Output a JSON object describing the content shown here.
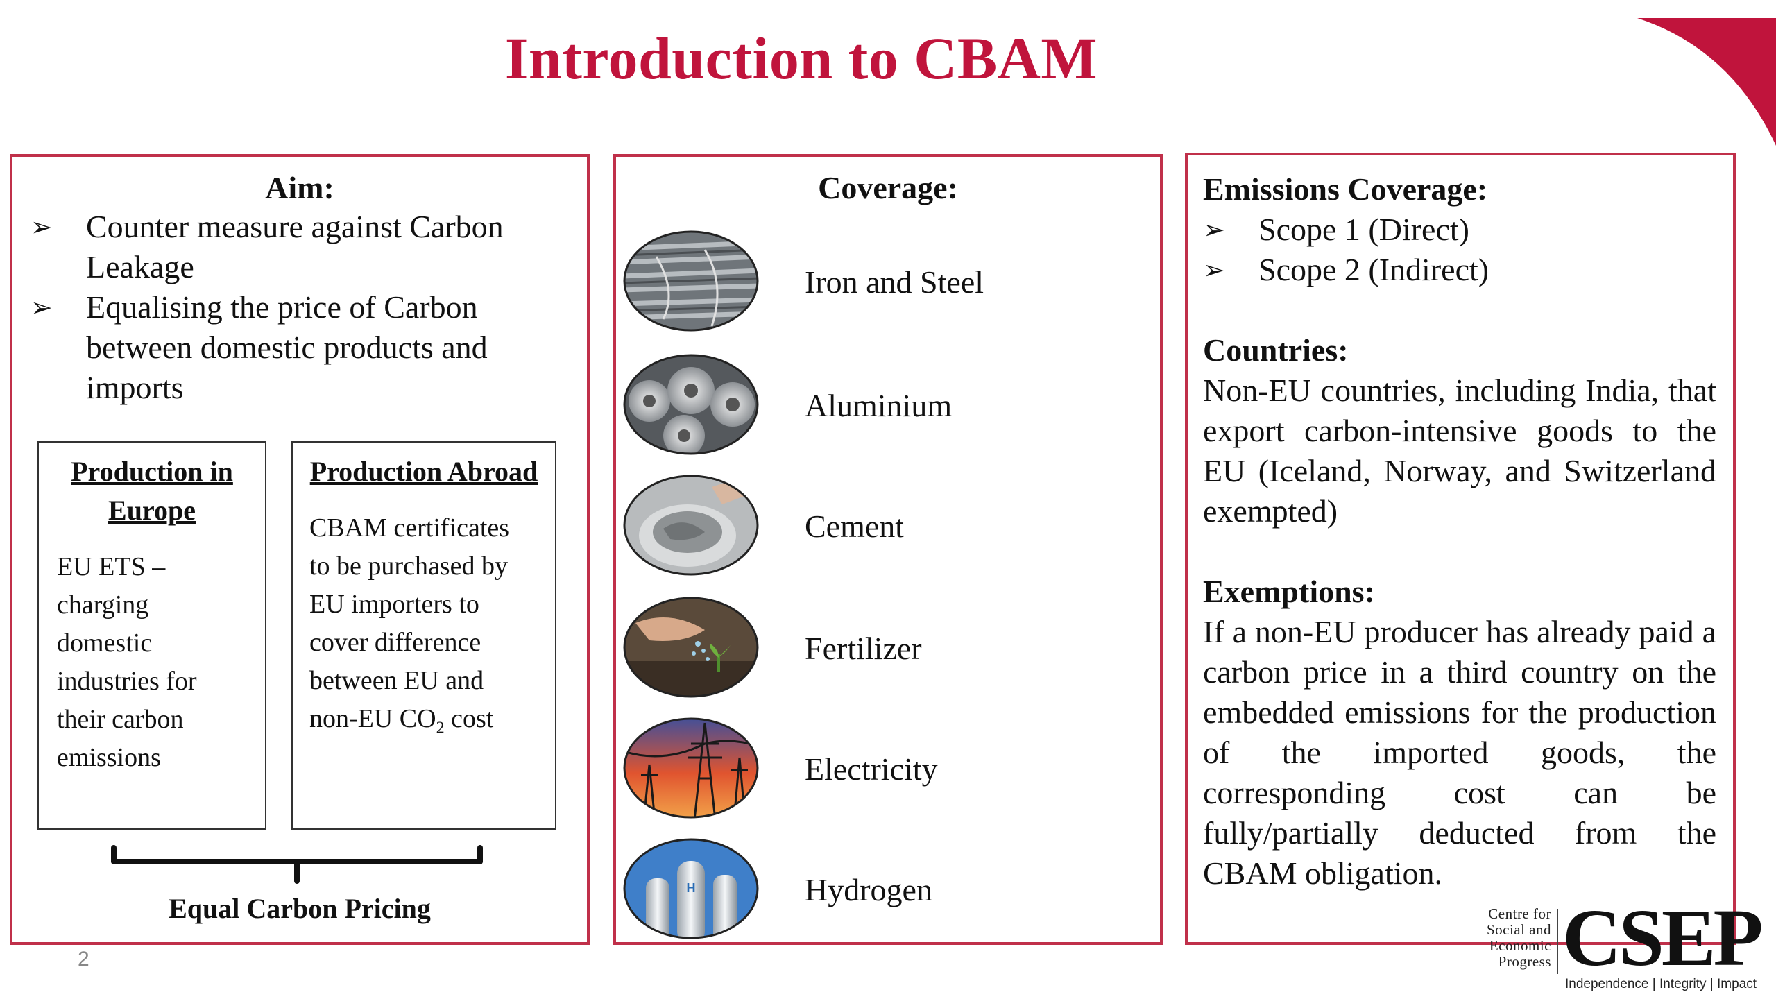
{
  "title": "Introduction to CBAM",
  "page_number": "2",
  "colors": {
    "accent": "#c0143c",
    "border": "#c0304a"
  },
  "aim": {
    "heading": "Aim:",
    "bullets": [
      "Counter measure against Carbon Leakage",
      "Equalising the price of Carbon between domestic products and imports"
    ],
    "europe": {
      "title": "Production in Europe",
      "text": "EU ETS – charging domestic industries for their carbon emissions"
    },
    "abroad": {
      "title": "Production Abroad",
      "text_before": "CBAM certificates to be purchased by EU importers to cover difference between EU and non-EU CO",
      "subscript": "2",
      "text_after": " cost"
    },
    "equal_label": "Equal Carbon Pricing"
  },
  "coverage": {
    "heading": "Coverage:",
    "items": [
      {
        "label": "Iron and Steel",
        "icon": "steel-bars-icon"
      },
      {
        "label": "Aluminium",
        "icon": "aluminium-rolls-icon"
      },
      {
        "label": "Cement",
        "icon": "cement-icon"
      },
      {
        "label": "Fertilizer",
        "icon": "fertilizer-icon"
      },
      {
        "label": "Electricity",
        "icon": "power-tower-icon"
      },
      {
        "label": "Hydrogen",
        "icon": "hydrogen-tanks-icon"
      }
    ]
  },
  "emissions": {
    "heading": "Emissions Coverage:",
    "scopes": [
      "Scope 1 (Direct)",
      "Scope 2 (Indirect)"
    ],
    "countries_heading": "Countries:",
    "countries_text": "Non-EU countries, including India, that export carbon-intensive goods to the EU (Iceland, Norway, and Switzerland exempted)",
    "exemptions_heading": "Exemptions:",
    "exemptions_text": "If a non-EU producer has already paid a carbon price in a third country on the embedded emissions for the production of the imported goods, the corresponding cost can be fully/partially deducted from the CBAM obligation."
  },
  "logo": {
    "small_lines": [
      "Centre for",
      "Social and",
      "Economic",
      "Progress"
    ],
    "big": "CSEP",
    "tagline": "Independence | Integrity | Impact"
  }
}
